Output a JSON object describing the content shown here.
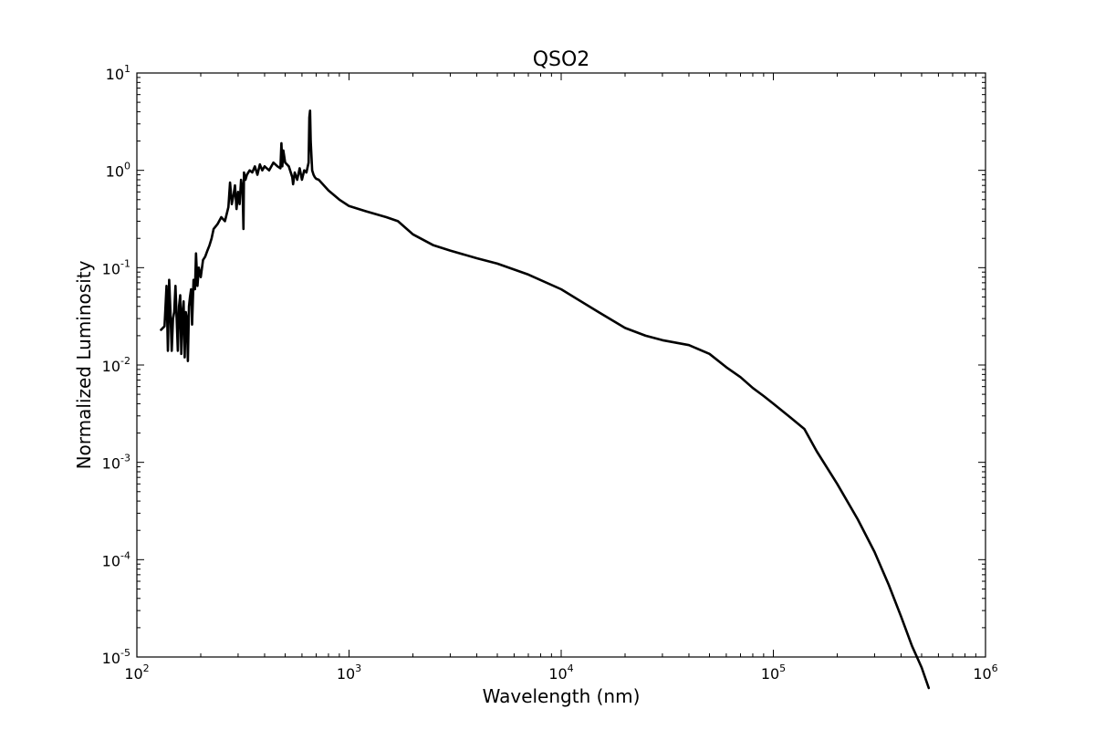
{
  "chart_data": {
    "type": "line",
    "title": "QSO2",
    "xlabel": "Wavelength (nm)",
    "ylabel": "Normalized Luminosity",
    "xscale": "log",
    "yscale": "log",
    "xlim": [
      100,
      1000000
    ],
    "ylim": [
      1e-05,
      10
    ],
    "grid": false,
    "line_color": "#000000",
    "x_tick_labels": [
      {
        "base": "10",
        "exp": "2"
      },
      {
        "base": "10",
        "exp": "3"
      },
      {
        "base": "10",
        "exp": "4"
      },
      {
        "base": "10",
        "exp": "5"
      },
      {
        "base": "10",
        "exp": "6"
      }
    ],
    "y_tick_labels": [
      {
        "base": "10",
        "exp": "-5"
      },
      {
        "base": "10",
        "exp": "-4"
      },
      {
        "base": "10",
        "exp": "-3"
      },
      {
        "base": "10",
        "exp": "-2"
      },
      {
        "base": "10",
        "exp": "-1"
      },
      {
        "base": "10",
        "exp": "0"
      },
      {
        "base": "10",
        "exp": "1"
      }
    ],
    "series": [
      {
        "x": [
          130,
          135,
          138,
          140,
          142,
          144,
          146,
          148,
          150,
          152,
          154,
          156,
          158,
          160,
          162,
          164,
          166,
          168,
          170,
          172,
          174,
          176,
          178,
          180,
          182,
          185,
          188,
          190,
          193,
          196,
          200,
          205,
          210,
          215,
          220,
          225,
          230,
          240,
          250,
          260,
          270,
          275,
          280,
          285,
          290,
          295,
          300,
          305,
          310,
          315,
          318,
          320,
          325,
          330,
          340,
          350,
          360,
          370,
          380,
          390,
          400,
          420,
          440,
          460,
          475,
          480,
          485,
          490,
          500,
          520,
          540,
          545,
          555,
          570,
          585,
          600,
          615,
          630,
          645,
          650,
          655,
          660,
          670,
          680,
          690,
          700,
          720,
          800,
          900,
          1000,
          1200,
          1500,
          1700,
          2000,
          2500,
          3000,
          4000,
          5000,
          7000,
          10000,
          15000,
          20000,
          25000,
          30000,
          40000,
          50000,
          60000,
          70000,
          80000,
          90000,
          100000,
          120000,
          140000,
          160000,
          200000,
          250000,
          300000,
          350000,
          400000,
          450000,
          500000,
          540000
        ],
        "y": [
          0.023,
          0.025,
          0.065,
          0.014,
          0.075,
          0.035,
          0.014,
          0.03,
          0.035,
          0.065,
          0.03,
          0.014,
          0.04,
          0.052,
          0.013,
          0.035,
          0.045,
          0.012,
          0.035,
          0.03,
          0.011,
          0.04,
          0.05,
          0.06,
          0.026,
          0.075,
          0.06,
          0.14,
          0.065,
          0.1,
          0.08,
          0.12,
          0.13,
          0.15,
          0.17,
          0.2,
          0.25,
          0.28,
          0.33,
          0.3,
          0.42,
          0.75,
          0.45,
          0.55,
          0.7,
          0.4,
          0.6,
          0.45,
          0.8,
          0.6,
          0.25,
          0.95,
          0.8,
          0.9,
          1.0,
          0.95,
          1.1,
          0.9,
          1.15,
          1.0,
          1.1,
          1.0,
          1.2,
          1.1,
          1.05,
          1.9,
          1.1,
          1.6,
          1.2,
          1.1,
          0.85,
          0.72,
          0.95,
          0.8,
          1.05,
          0.8,
          1.0,
          0.95,
          1.2,
          3.5,
          4.1,
          2.0,
          1.0,
          0.9,
          0.85,
          0.82,
          0.8,
          0.62,
          0.5,
          0.43,
          0.38,
          0.33,
          0.3,
          0.22,
          0.17,
          0.15,
          0.125,
          0.11,
          0.085,
          0.06,
          0.035,
          0.024,
          0.02,
          0.018,
          0.016,
          0.013,
          0.0095,
          0.0075,
          0.0058,
          0.0048,
          0.004,
          0.0029,
          0.0022,
          0.0013,
          0.0006,
          0.00026,
          0.00012,
          5.5e-05,
          2.6e-05,
          1.3e-05,
          7.8e-06,
          4.8e-06
        ]
      }
    ]
  }
}
